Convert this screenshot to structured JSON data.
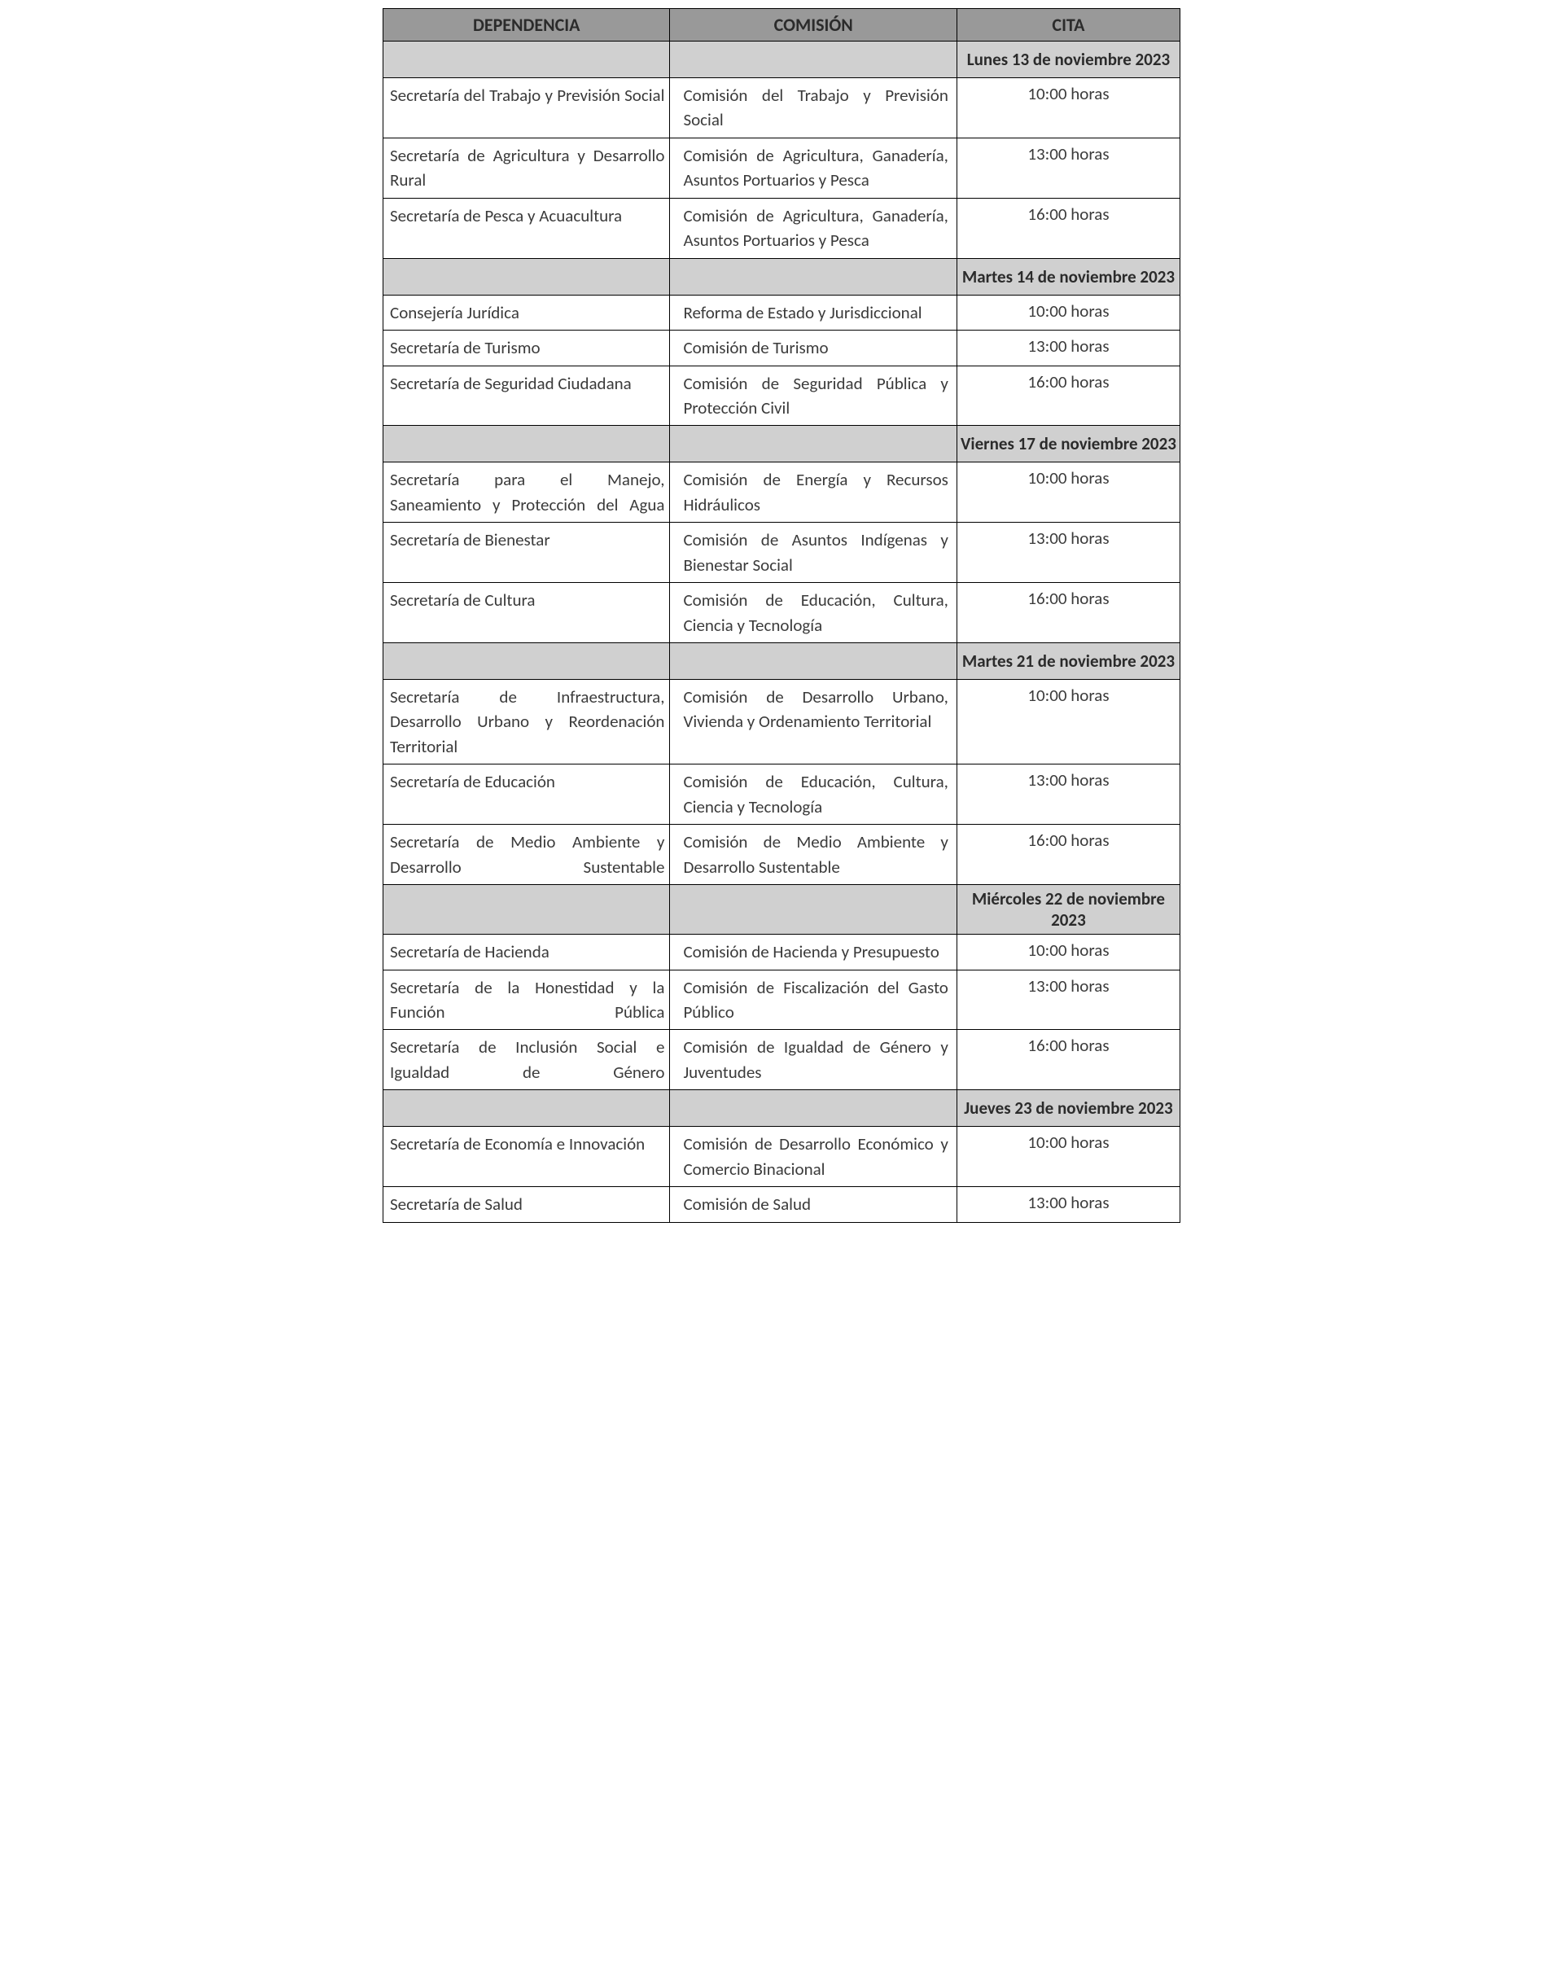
{
  "table": {
    "headers": {
      "dependencia": "DEPENDENCIA",
      "comision": "COMISIÓN",
      "cita": "CITA"
    },
    "column_widths_pct": [
      36,
      36,
      28
    ],
    "header_bg": "#999999",
    "date_row_bg": "#d0d0d0",
    "border_color": "#000000",
    "text_color": "#3b3b3b",
    "font_family": "Calibri",
    "header_fontsize_pt": 11,
    "body_fontsize_pt": 11,
    "rows": [
      {
        "type": "date",
        "date": "Lunes 13 de noviembre 2023"
      },
      {
        "type": "entry",
        "dependencia": "Secretaría del Trabajo y Previsión Social",
        "comision_lines": [
          "Comisión del Trabajo y Previsión",
          "Social"
        ],
        "comision": "Comisión del Trabajo y Previsión Social",
        "cita": "10:00 horas"
      },
      {
        "type": "entry",
        "dependencia": "Secretaría de Agricultura y Desarrollo Rural",
        "comision_lines": [
          "Comisión de Agricultura, Ganadería,",
          "Asuntos Portuarios y Pesca"
        ],
        "comision": "Comisión de Agricultura, Ganadería, Asuntos Portuarios y Pesca",
        "cita": "13:00 horas"
      },
      {
        "type": "entry",
        "dependencia": "Secretaría de Pesca y Acuacultura",
        "dep_single": true,
        "comision_lines": [
          "Comisión de Agricultura, Ganadería,",
          "Asuntos Portuarios y Pesca"
        ],
        "comision": "Comisión de Agricultura, Ganadería, Asuntos Portuarios y Pesca",
        "cita": "16:00 horas"
      },
      {
        "type": "date",
        "date": "Martes 14 de noviembre 2023"
      },
      {
        "type": "entry",
        "dependencia": "Consejería Jurídica",
        "dep_single": true,
        "comision": "Reforma de Estado y Jurisdiccional",
        "com_single": true,
        "cita": "10:00 horas"
      },
      {
        "type": "entry",
        "dependencia": "Secretaría de Turismo",
        "dep_single": true,
        "comision": "Comisión de Turismo",
        "com_single": true,
        "cita": "13:00 horas"
      },
      {
        "type": "entry",
        "dependencia": "Secretaría de Seguridad Ciudadana",
        "dep_single": true,
        "comision_lines": [
          "Comisión de Seguridad Pública y",
          "Protección Civil"
        ],
        "comision": "Comisión de Seguridad Pública y Protección Civil",
        "cita": "16:00 horas"
      },
      {
        "type": "date",
        "date": "Viernes 17 de noviembre 2023"
      },
      {
        "type": "entry",
        "dependencia": "Secretaría para el Manejo, Saneamiento y Protección del Agua",
        "comision_lines": [
          "Comisión de Energía y Recursos",
          "Hidráulicos"
        ],
        "comision": "Comisión de Energía y Recursos Hidráulicos",
        "cita": "10:00 horas"
      },
      {
        "type": "entry",
        "dependencia": "Secretaría de Bienestar",
        "dep_single": true,
        "comision_lines": [
          "Comisión de Asuntos Indígenas y",
          "Bienestar Social"
        ],
        "comision": "Comisión de Asuntos Indígenas y Bienestar Social",
        "cita": "13:00 horas"
      },
      {
        "type": "entry",
        "dependencia": "Secretaría de Cultura",
        "dep_single": true,
        "comision_lines": [
          "Comisión de Educación, Cultura,",
          "Ciencia y Tecnología"
        ],
        "comision": "Comisión de Educación, Cultura, Ciencia y Tecnología",
        "cita": "16:00 horas"
      },
      {
        "type": "date",
        "date": "Martes 21 de noviembre 2023"
      },
      {
        "type": "entry",
        "dependencia": "Secretaría de Infraestructura, Desarrollo Urbano y Reordenación Territorial",
        "comision_lines": [
          "Comisión de Desarrollo Urbano,",
          "Vivienda y Ordenamiento Territorial"
        ],
        "comision": "Comisión de Desarrollo Urbano, Vivienda y Ordenamiento Territorial",
        "cita": "10:00 horas"
      },
      {
        "type": "entry",
        "dependencia": "Secretaría de Educación",
        "dep_single": true,
        "comision_lines": [
          "Comisión de Educación, Cultura,",
          "Ciencia y Tecnología"
        ],
        "comision": "Comisión de Educación, Cultura, Ciencia y Tecnología",
        "cita": "13:00 horas"
      },
      {
        "type": "entry",
        "dependencia": "Secretaría de Medio Ambiente y Desarrollo Sustentable",
        "comision_lines": [
          "Comisión de Medio Ambiente y",
          "Desarrollo Sustentable"
        ],
        "comision": "Comisión de Medio Ambiente y Desarrollo Sustentable",
        "cita": "16:00 horas"
      },
      {
        "type": "date",
        "date": "Miércoles 22 de noviembre 2023"
      },
      {
        "type": "entry",
        "dependencia": "Secretaría de Hacienda",
        "dep_single": true,
        "comision": "Comisión de Hacienda y Presupuesto",
        "com_single": true,
        "cita": "10:00 horas"
      },
      {
        "type": "entry",
        "dependencia": "Secretaría de la Honestidad y la Función Pública",
        "comision_lines": [
          "Comisión de Fiscalización del Gasto",
          "Público"
        ],
        "comision": "Comisión de Fiscalización del Gasto Público",
        "cita": "13:00 horas"
      },
      {
        "type": "entry",
        "dependencia": "Secretaría de Inclusión Social e Igualdad de Género",
        "comision_lines": [
          "Comisión de Igualdad de Género y",
          "Juventudes"
        ],
        "comision": "Comisión de Igualdad de Género y Juventudes",
        "cita": "16:00 horas"
      },
      {
        "type": "date",
        "date": "Jueves 23 de noviembre 2023"
      },
      {
        "type": "entry",
        "dependencia": "Secretaría de Economía e Innovación",
        "dep_single": true,
        "comision_lines": [
          "Comisión de Desarrollo Económico y",
          "Comercio Binacional"
        ],
        "comision": "Comisión de Desarrollo Económico y Comercio Binacional",
        "cita": "10:00 horas"
      },
      {
        "type": "entry",
        "dependencia": "Secretaría de Salud",
        "dep_single": true,
        "comision": "Comisión de Salud",
        "com_single": true,
        "cita": "13:00 horas"
      }
    ]
  }
}
